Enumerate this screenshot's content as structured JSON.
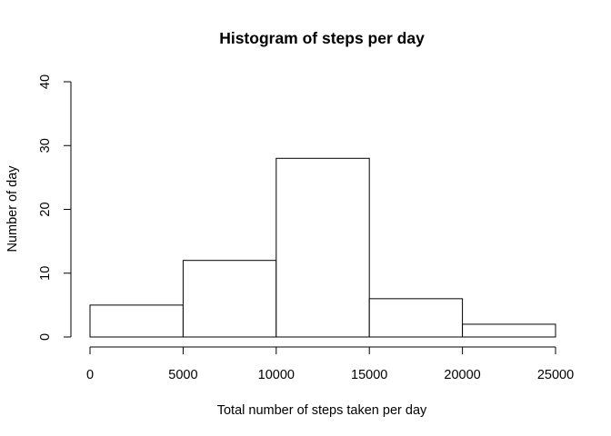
{
  "chart_data": {
    "type": "bar",
    "title": "Histogram of steps per day",
    "xlabel": "Total number of steps taken per day",
    "ylabel": "Number of day",
    "bins": [
      {
        "start": 0,
        "end": 5000,
        "count": 5
      },
      {
        "start": 5000,
        "end": 10000,
        "count": 12
      },
      {
        "start": 10000,
        "end": 15000,
        "count": 28
      },
      {
        "start": 15000,
        "end": 20000,
        "count": 6
      },
      {
        "start": 20000,
        "end": 25000,
        "count": 2
      }
    ],
    "xlim": [
      0,
      25000
    ],
    "ylim": [
      0,
      40
    ],
    "x_ticks": [
      0,
      5000,
      10000,
      15000,
      20000,
      25000
    ],
    "y_ticks": [
      0,
      10,
      20,
      30,
      40
    ],
    "grid": false,
    "colors": {
      "bar_fill": "#ffffff",
      "bar_stroke": "#000000"
    }
  }
}
